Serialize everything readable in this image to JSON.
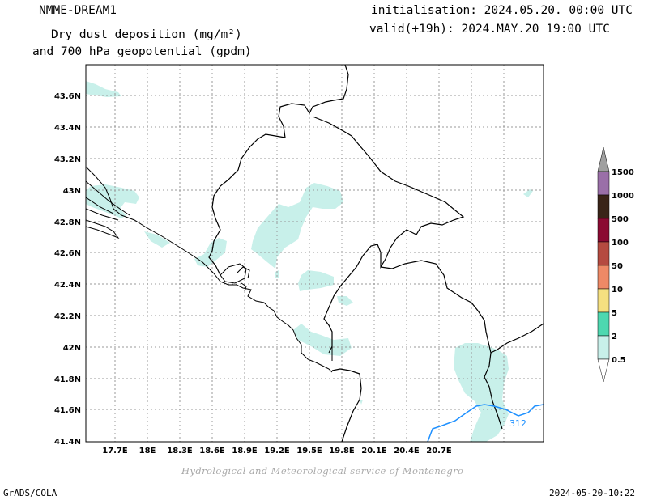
{
  "header": {
    "model": "NMME-DREAM1",
    "title_line1": "Dry dust deposition (mg/m²)",
    "title_line2": "and 700 hPa geopotential (gpdm)",
    "init": "initialisation: 2024.05.20. 00:00 UTC",
    "valid": "valid(+19h): 2024.MAY.20 19:00 UTC"
  },
  "map": {
    "lat_labels": [
      "43.6N",
      "43.4N",
      "43.2N",
      "43N",
      "42.8N",
      "42.6N",
      "42.4N",
      "42.2N",
      "42N",
      "41.8N",
      "41.6N",
      "41.4N"
    ],
    "lon_labels": [
      "17.7E",
      "18E",
      "18.3E",
      "18.6E",
      "18.9E",
      "19.2E",
      "19.5E",
      "19.8E",
      "20.1E",
      "20.4E",
      "20.7E"
    ],
    "contour_label": "312",
    "colors": {
      "dust_light": "#c8f0ea",
      "contour": "#1e90ff",
      "grid": "#999999"
    }
  },
  "legend": {
    "levels": [
      "1500",
      "1000",
      "500",
      "100",
      "50",
      "10",
      "5",
      "2",
      "0.5"
    ],
    "colors": [
      "#9a6fa8",
      "#3a2418",
      "#8b0a32",
      "#b54a40",
      "#ee8966",
      "#f5e080",
      "#4ed8b0",
      "#c8f0ea"
    ],
    "top_cap_color": "#a0a0a0"
  },
  "footer": {
    "credit": "Hydrological and Meteorological service of Montenegro",
    "grads": "GrADS/COLA",
    "date": "2024-05-20-10:22"
  }
}
